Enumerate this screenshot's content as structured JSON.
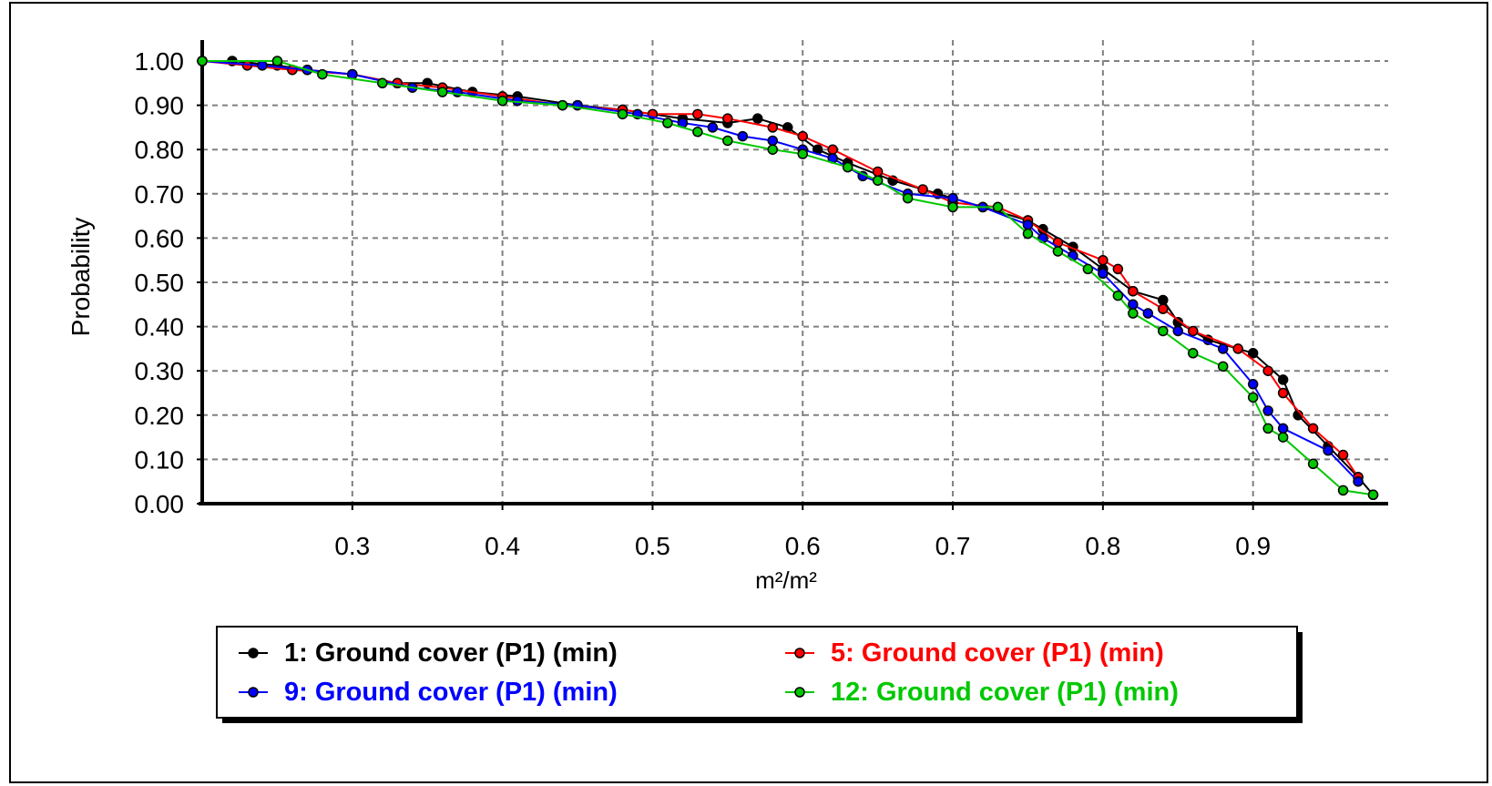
{
  "chart_data": {
    "type": "line",
    "title": "",
    "xlabel": "m²/m²",
    "ylabel": "Probability",
    "xlim": [
      0.2,
      0.99
    ],
    "ylim": [
      0.0,
      1.0
    ],
    "x_ticks": [
      0.3,
      0.4,
      0.5,
      0.6,
      0.7,
      0.8,
      0.9
    ],
    "x_tick_labels": [
      "0.3",
      "0.4",
      "0.5",
      "0.6",
      "0.7",
      "0.8",
      "0.9"
    ],
    "y_ticks": [
      0.0,
      0.1,
      0.2,
      0.3,
      0.4,
      0.5,
      0.6,
      0.7,
      0.8,
      0.9,
      1.0
    ],
    "y_tick_labels": [
      "0.00",
      "0.10",
      "0.20",
      "0.30",
      "0.40",
      "0.50",
      "0.60",
      "0.70",
      "0.80",
      "0.90",
      "1.00"
    ],
    "grid": true,
    "legend_position": "bottom",
    "series": [
      {
        "name": "1: Ground cover (P1) (min)",
        "color": "#000000",
        "x": [
          0.2,
          0.22,
          0.25,
          0.27,
          0.3,
          0.33,
          0.35,
          0.38,
          0.41,
          0.45,
          0.48,
          0.52,
          0.55,
          0.57,
          0.59,
          0.61,
          0.63,
          0.66,
          0.69,
          0.72,
          0.75,
          0.76,
          0.78,
          0.8,
          0.82,
          0.84,
          0.85,
          0.87,
          0.9,
          0.92,
          0.93,
          0.95,
          0.97,
          0.98
        ],
        "y": [
          1.0,
          1.0,
          0.99,
          0.98,
          0.97,
          0.95,
          0.95,
          0.93,
          0.92,
          0.9,
          0.89,
          0.87,
          0.86,
          0.87,
          0.85,
          0.8,
          0.77,
          0.73,
          0.7,
          0.67,
          0.64,
          0.62,
          0.58,
          0.53,
          0.48,
          0.46,
          0.41,
          0.37,
          0.34,
          0.28,
          0.2,
          0.13,
          0.06,
          0.02
        ]
      },
      {
        "name": "5: Ground cover (P1) (min)",
        "color": "#ff0000",
        "x": [
          0.2,
          0.23,
          0.26,
          0.3,
          0.33,
          0.36,
          0.4,
          0.44,
          0.48,
          0.5,
          0.53,
          0.55,
          0.58,
          0.6,
          0.62,
          0.65,
          0.68,
          0.7,
          0.73,
          0.75,
          0.77,
          0.8,
          0.81,
          0.82,
          0.84,
          0.86,
          0.89,
          0.91,
          0.92,
          0.94,
          0.96,
          0.97
        ],
        "y": [
          1.0,
          0.99,
          0.98,
          0.97,
          0.95,
          0.94,
          0.92,
          0.9,
          0.89,
          0.88,
          0.88,
          0.87,
          0.85,
          0.83,
          0.8,
          0.75,
          0.71,
          0.68,
          0.67,
          0.64,
          0.59,
          0.55,
          0.53,
          0.48,
          0.44,
          0.39,
          0.35,
          0.3,
          0.25,
          0.17,
          0.11,
          0.06
        ]
      },
      {
        "name": "9: Ground cover (P1) (min)",
        "color": "#0000ff",
        "x": [
          0.2,
          0.24,
          0.27,
          0.3,
          0.34,
          0.37,
          0.41,
          0.45,
          0.49,
          0.52,
          0.54,
          0.56,
          0.58,
          0.6,
          0.62,
          0.64,
          0.67,
          0.7,
          0.72,
          0.75,
          0.76,
          0.78,
          0.8,
          0.82,
          0.83,
          0.85,
          0.88,
          0.9,
          0.91,
          0.92,
          0.95,
          0.97
        ],
        "y": [
          1.0,
          0.99,
          0.98,
          0.97,
          0.94,
          0.93,
          0.91,
          0.9,
          0.88,
          0.86,
          0.85,
          0.83,
          0.82,
          0.8,
          0.78,
          0.74,
          0.7,
          0.69,
          0.67,
          0.63,
          0.6,
          0.56,
          0.52,
          0.45,
          0.43,
          0.39,
          0.35,
          0.27,
          0.21,
          0.17,
          0.12,
          0.05
        ]
      },
      {
        "name": "12: Ground cover (P1) (min)",
        "color": "#00c800",
        "x": [
          0.2,
          0.25,
          0.28,
          0.32,
          0.36,
          0.4,
          0.44,
          0.48,
          0.51,
          0.53,
          0.55,
          0.58,
          0.6,
          0.63,
          0.65,
          0.67,
          0.7,
          0.73,
          0.75,
          0.77,
          0.79,
          0.81,
          0.82,
          0.84,
          0.86,
          0.88,
          0.9,
          0.91,
          0.92,
          0.94,
          0.96,
          0.98
        ],
        "y": [
          1.0,
          1.0,
          0.97,
          0.95,
          0.93,
          0.91,
          0.9,
          0.88,
          0.86,
          0.84,
          0.82,
          0.8,
          0.79,
          0.76,
          0.73,
          0.69,
          0.67,
          0.67,
          0.61,
          0.57,
          0.53,
          0.47,
          0.43,
          0.39,
          0.34,
          0.31,
          0.24,
          0.17,
          0.15,
          0.09,
          0.03,
          0.02
        ]
      }
    ]
  }
}
